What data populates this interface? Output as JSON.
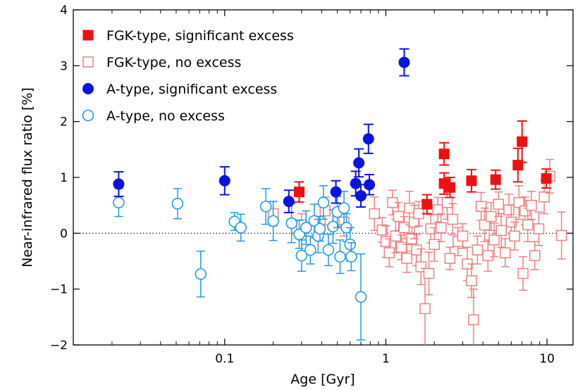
{
  "chart_data": {
    "type": "scatter",
    "xscale": "log",
    "xlim": [
      0.0115,
      14.5
    ],
    "ylim": [
      -2,
      4
    ],
    "xlabel": "Age [Gyr]",
    "ylabel": "Near-infrared flux ratio [%]",
    "xticks": [
      0.1,
      1,
      10
    ],
    "xtick_labels": [
      "0.1",
      "1",
      "10"
    ],
    "yticks": [
      -2,
      -1,
      0,
      1,
      2,
      3,
      4
    ],
    "ytick_labels": [
      "−2",
      "−1",
      "0",
      "1",
      "2",
      "3",
      "4"
    ],
    "reference_line": {
      "y": 0,
      "style": "dotted"
    },
    "legend_position": "top-left",
    "series": [
      {
        "name": "FGK-type, significant excess",
        "marker": "square",
        "filled": true,
        "color": "#ee1111",
        "points": [
          {
            "x": 0.29,
            "y": 0.74,
            "err": 0.18
          },
          {
            "x": 1.8,
            "y": 0.52,
            "err": 0.17
          },
          {
            "x": 2.3,
            "y": 1.42,
            "err": 0.2
          },
          {
            "x": 2.3,
            "y": 0.89,
            "err": 0.19
          },
          {
            "x": 2.5,
            "y": 0.82,
            "err": 0.18
          },
          {
            "x": 3.4,
            "y": 0.94,
            "err": 0.2
          },
          {
            "x": 4.8,
            "y": 0.96,
            "err": 0.17
          },
          {
            "x": 6.6,
            "y": 1.22,
            "err": 0.3
          },
          {
            "x": 7.0,
            "y": 1.64,
            "err": 0.37
          },
          {
            "x": 9.9,
            "y": 0.98,
            "err": 0.17
          }
        ]
      },
      {
        "name": "FGK-type, no excess",
        "marker": "square",
        "filled": false,
        "color": "#f08080",
        "points": [
          {
            "x": 0.2,
            "y": 0.35,
            "err": 0.22
          },
          {
            "x": 0.3,
            "y": 0.15,
            "err": 0.2
          },
          {
            "x": 0.42,
            "y": 0.4,
            "err": 0.25
          },
          {
            "x": 0.55,
            "y": 0.2,
            "err": 0.25
          },
          {
            "x": 0.85,
            "y": 0.35,
            "err": 0.3
          },
          {
            "x": 0.95,
            "y": 0.06,
            "err": 0.22
          },
          {
            "x": 1.0,
            "y": -0.15,
            "err": 0.28
          },
          {
            "x": 1.05,
            "y": -0.35,
            "err": 0.25
          },
          {
            "x": 1.1,
            "y": 0.55,
            "err": 0.22
          },
          {
            "x": 1.15,
            "y": -0.05,
            "err": 0.3
          },
          {
            "x": 1.2,
            "y": 0.3,
            "err": 0.25
          },
          {
            "x": 1.25,
            "y": -0.25,
            "err": 0.22
          },
          {
            "x": 1.3,
            "y": 0.1,
            "err": 0.2
          },
          {
            "x": 1.35,
            "y": -0.45,
            "err": 0.25
          },
          {
            "x": 1.4,
            "y": 0.45,
            "err": 0.3
          },
          {
            "x": 1.45,
            "y": -0.1,
            "err": 0.22
          },
          {
            "x": 1.5,
            "y": 0.2,
            "err": 0.3
          },
          {
            "x": 1.55,
            "y": -0.3,
            "err": 0.28
          },
          {
            "x": 1.6,
            "y": 0.35,
            "err": 0.22
          },
          {
            "x": 1.65,
            "y": -0.6,
            "err": 0.32
          },
          {
            "x": 1.75,
            "y": -1.35,
            "err": 0.72
          },
          {
            "x": 1.85,
            "y": -0.72,
            "err": 0.38
          },
          {
            "x": 1.9,
            "y": 0.08,
            "err": 0.25
          },
          {
            "x": 2.0,
            "y": -0.2,
            "err": 0.3
          },
          {
            "x": 2.1,
            "y": 0.42,
            "err": 0.22
          },
          {
            "x": 2.2,
            "y": 0.1,
            "err": 0.25
          },
          {
            "x": 2.4,
            "y": 0.55,
            "err": 0.3
          },
          {
            "x": 2.5,
            "y": -0.45,
            "err": 0.2
          },
          {
            "x": 2.6,
            "y": 0.25,
            "err": 0.28
          },
          {
            "x": 2.8,
            "y": -0.15,
            "err": 0.25
          },
          {
            "x": 3.0,
            "y": -0.05,
            "err": 0.22
          },
          {
            "x": 3.2,
            "y": -0.55,
            "err": 0.3
          },
          {
            "x": 3.4,
            "y": -0.85,
            "err": 0.3
          },
          {
            "x": 3.5,
            "y": -1.55,
            "err": 0.55
          },
          {
            "x": 3.7,
            "y": -0.3,
            "err": 0.25
          },
          {
            "x": 3.9,
            "y": 0.48,
            "err": 0.25
          },
          {
            "x": 4.1,
            "y": 0.15,
            "err": 0.3
          },
          {
            "x": 4.3,
            "y": -0.4,
            "err": 0.28
          },
          {
            "x": 4.5,
            "y": 0.3,
            "err": 0.25
          },
          {
            "x": 4.7,
            "y": -0.12,
            "err": 0.3
          },
          {
            "x": 5.0,
            "y": 0.52,
            "err": 0.22
          },
          {
            "x": 5.2,
            "y": 0.05,
            "err": 0.3
          },
          {
            "x": 5.5,
            "y": -0.35,
            "err": 0.25
          },
          {
            "x": 5.8,
            "y": 0.42,
            "err": 0.28
          },
          {
            "x": 6.0,
            "y": 0.2,
            "err": 0.3
          },
          {
            "x": 6.3,
            "y": -0.05,
            "err": 0.25
          },
          {
            "x": 6.7,
            "y": 0.55,
            "err": 0.3
          },
          {
            "x": 7.1,
            "y": -0.72,
            "err": 0.3
          },
          {
            "x": 7.3,
            "y": 0.4,
            "err": 0.25
          },
          {
            "x": 7.6,
            "y": 0.15,
            "err": 0.3
          },
          {
            "x": 8.0,
            "y": 0.5,
            "err": 0.25
          },
          {
            "x": 8.4,
            "y": -0.4,
            "err": 0.25
          },
          {
            "x": 8.9,
            "y": 0.08,
            "err": 0.3
          },
          {
            "x": 9.6,
            "y": 0.65,
            "err": 0.3
          },
          {
            "x": 10.4,
            "y": 1.02,
            "err": 0.3
          },
          {
            "x": 12.3,
            "y": -0.04,
            "err": 0.42
          }
        ]
      },
      {
        "name": "A-type, significant excess",
        "marker": "circle",
        "filled": true,
        "color": "#0a14e0",
        "points": [
          {
            "x": 0.022,
            "y": 0.88,
            "err": 0.22
          },
          {
            "x": 0.1,
            "y": 0.94,
            "err": 0.25
          },
          {
            "x": 0.25,
            "y": 0.57,
            "err": 0.2
          },
          {
            "x": 0.49,
            "y": 0.74,
            "err": 0.2
          },
          {
            "x": 0.65,
            "y": 0.89,
            "err": 0.22
          },
          {
            "x": 0.68,
            "y": 1.26,
            "err": 0.25
          },
          {
            "x": 0.7,
            "y": 0.67,
            "err": 0.2
          },
          {
            "x": 0.78,
            "y": 1.69,
            "err": 0.26
          },
          {
            "x": 0.79,
            "y": 0.87,
            "err": 0.18
          },
          {
            "x": 1.3,
            "y": 3.06,
            "err": 0.24
          }
        ]
      },
      {
        "name": "A-type, no excess",
        "marker": "circle",
        "filled": false,
        "color": "#1e9be8",
        "points": [
          {
            "x": 0.022,
            "y": 0.55,
            "err": 0.25
          },
          {
            "x": 0.051,
            "y": 0.53,
            "err": 0.27
          },
          {
            "x": 0.071,
            "y": -0.73,
            "err": 0.41
          },
          {
            "x": 0.115,
            "y": 0.21,
            "err": 0.16
          },
          {
            "x": 0.126,
            "y": 0.1,
            "err": 0.24
          },
          {
            "x": 0.18,
            "y": 0.48,
            "err": 0.32
          },
          {
            "x": 0.2,
            "y": 0.22,
            "err": 0.35
          },
          {
            "x": 0.26,
            "y": 0.18,
            "err": 0.35
          },
          {
            "x": 0.29,
            "y": -0.02,
            "err": 0.25
          },
          {
            "x": 0.3,
            "y": -0.4,
            "err": 0.28
          },
          {
            "x": 0.32,
            "y": 0.1,
            "err": 0.3
          },
          {
            "x": 0.34,
            "y": -0.3,
            "err": 0.25
          },
          {
            "x": 0.36,
            "y": 0.22,
            "err": 0.3
          },
          {
            "x": 0.38,
            "y": -0.05,
            "err": 0.3
          },
          {
            "x": 0.39,
            "y": 0.08,
            "err": 0.22
          },
          {
            "x": 0.41,
            "y": 0.55,
            "err": 0.3
          },
          {
            "x": 0.44,
            "y": -0.3,
            "err": 0.28
          },
          {
            "x": 0.47,
            "y": 0.12,
            "err": 0.3
          },
          {
            "x": 0.5,
            "y": 0.38,
            "err": 0.28
          },
          {
            "x": 0.52,
            "y": -0.42,
            "err": 0.3
          },
          {
            "x": 0.55,
            "y": 0.45,
            "err": 0.3
          },
          {
            "x": 0.57,
            "y": 0.1,
            "err": 0.25
          },
          {
            "x": 0.6,
            "y": -0.2,
            "err": 0.3
          },
          {
            "x": 0.61,
            "y": -0.42,
            "err": 0.25
          },
          {
            "x": 0.7,
            "y": -1.14,
            "err": 0.77
          }
        ]
      }
    ]
  }
}
